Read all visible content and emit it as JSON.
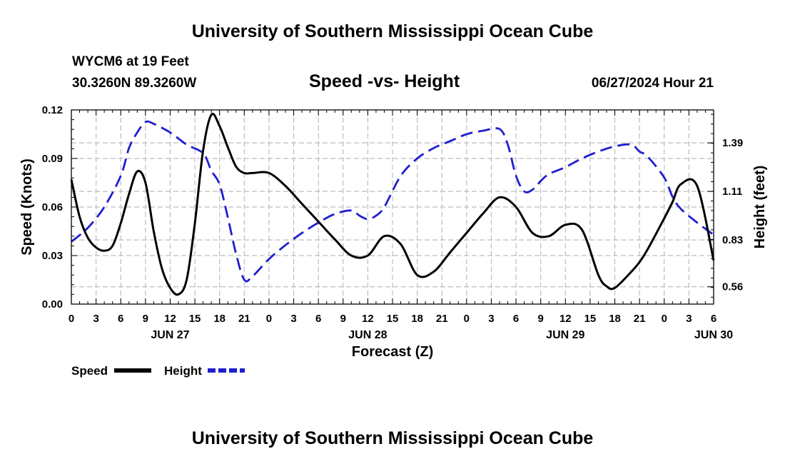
{
  "header": {
    "title_top": "University of Southern Mississippi Ocean Cube",
    "station": "WYCM6 at 19 Feet",
    "coords": "30.3260N  89.3260W",
    "datetime": "06/27/2024 Hour 21"
  },
  "footer": {
    "title_bottom": "University of Southern Mississippi Ocean Cube"
  },
  "chart_data": {
    "type": "line",
    "title": "Speed -vs- Height",
    "xlabel": "Forecast (Z)",
    "ylabel": "Speed (Knots)",
    "y2label": "Height (feet)",
    "x_range_hours": [
      0,
      78
    ],
    "ylim": [
      0,
      0.12
    ],
    "y2lim": [
      0.46,
      1.58
    ],
    "yticks": [
      "0.00",
      "0.03",
      "0.06",
      "0.09",
      "0.12"
    ],
    "y2ticks": [
      "0.56",
      "0.83",
      "1.11",
      "1.39"
    ],
    "xtick_labels": [
      "0",
      "3",
      "6",
      "9",
      "12",
      "15",
      "18",
      "21",
      "0",
      "3",
      "6",
      "9",
      "12",
      "15",
      "18",
      "21",
      "0",
      "3",
      "6",
      "9",
      "12",
      "15",
      "18",
      "21",
      "0",
      "3",
      "6"
    ],
    "date_labels": [
      {
        "label": "JUN 27",
        "hour": 12
      },
      {
        "label": "JUN 28",
        "hour": 36
      },
      {
        "label": "JUN 29",
        "hour": 60
      },
      {
        "label": "JUN 30",
        "hour": 78
      }
    ],
    "grid": true,
    "legend": {
      "placement": "bottom-left",
      "items": [
        {
          "name": "Speed",
          "color": "#000000",
          "style": "solid"
        },
        {
          "name": "Height",
          "color": "#1f1fcf",
          "style": "dashed"
        }
      ]
    },
    "series": [
      {
        "name": "Speed",
        "axis": "left",
        "color": "#000000",
        "style": "solid",
        "x": [
          0,
          1,
          2,
          3,
          4,
          5,
          6,
          7,
          8,
          9,
          10,
          11,
          12,
          13,
          14,
          15,
          16,
          17,
          18,
          19,
          20,
          21,
          22,
          24,
          26,
          28,
          30,
          32,
          34,
          36,
          38,
          40,
          42,
          44,
          46,
          48,
          50,
          52,
          54,
          56,
          58,
          60,
          62,
          64,
          65,
          66,
          68,
          69,
          70,
          72,
          73,
          74,
          76,
          78
        ],
        "values": [
          0.077,
          0.054,
          0.041,
          0.035,
          0.033,
          0.036,
          0.05,
          0.068,
          0.082,
          0.075,
          0.045,
          0.022,
          0.01,
          0.006,
          0.015,
          0.05,
          0.095,
          0.117,
          0.11,
          0.097,
          0.085,
          0.081,
          0.081,
          0.081,
          0.073,
          0.062,
          0.051,
          0.04,
          0.03,
          0.03,
          0.042,
          0.037,
          0.018,
          0.02,
          0.032,
          0.044,
          0.056,
          0.066,
          0.06,
          0.044,
          0.042,
          0.049,
          0.046,
          0.018,
          0.011,
          0.01,
          0.02,
          0.026,
          0.034,
          0.053,
          0.063,
          0.074,
          0.073,
          0.027
        ]
      },
      {
        "name": "Height",
        "axis": "right",
        "color": "#1f1fcf",
        "style": "dashed",
        "x": [
          0,
          2,
          4,
          6,
          7,
          8,
          9,
          10,
          12,
          14,
          16,
          17,
          18,
          19,
          20,
          21,
          22,
          24,
          26,
          28,
          30,
          32,
          34,
          35,
          36,
          37,
          38,
          40,
          42,
          44,
          46,
          48,
          50,
          52,
          53,
          54,
          55,
          56,
          57,
          58,
          60,
          62,
          64,
          66,
          68,
          69,
          70,
          72,
          73,
          74,
          76,
          78
        ],
        "values": [
          0.82,
          0.9,
          1.02,
          1.2,
          1.36,
          1.45,
          1.51,
          1.5,
          1.45,
          1.38,
          1.33,
          1.23,
          1.15,
          0.96,
          0.75,
          0.6,
          0.62,
          0.72,
          0.8,
          0.87,
          0.93,
          0.98,
          1.0,
          0.97,
          0.95,
          0.97,
          1.02,
          1.2,
          1.3,
          1.36,
          1.4,
          1.44,
          1.46,
          1.47,
          1.38,
          1.2,
          1.11,
          1.12,
          1.17,
          1.21,
          1.25,
          1.3,
          1.34,
          1.37,
          1.38,
          1.34,
          1.31,
          1.19,
          1.08,
          1.01,
          0.93,
          0.86
        ]
      }
    ]
  }
}
